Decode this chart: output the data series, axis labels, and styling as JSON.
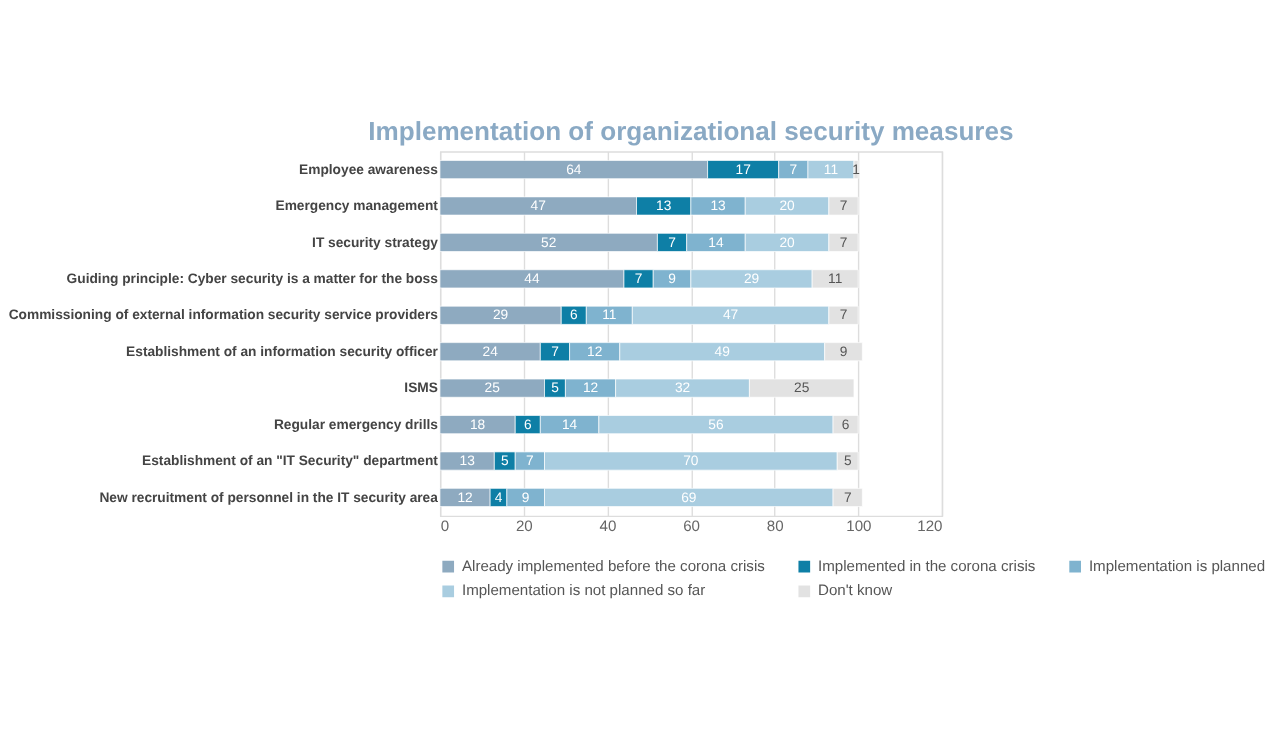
{
  "chart_data": {
    "type": "bar",
    "orientation": "horizontal",
    "stacked": true,
    "title": "Implementation of organizational security measures",
    "categories": [
      "Employee awareness",
      "Emergency management",
      "IT security strategy",
      "Guiding principle: Cyber security is a matter for the boss",
      "Commissioning of external information security service providers",
      "Establishment of an information security officer",
      "ISMS",
      "Regular emergency drills",
      "Establishment of an \"IT Security\" department",
      "New recruitment of personnel in the IT security area"
    ],
    "series": [
      {
        "name": "Already implemented before the corona crisis",
        "color": "#8eaac0",
        "values": [
          64,
          47,
          52,
          44,
          29,
          24,
          25,
          18,
          13,
          12
        ]
      },
      {
        "name": "Implemented in the corona crisis",
        "color": "#0e7fa6",
        "values": [
          17,
          13,
          7,
          7,
          6,
          7,
          5,
          6,
          5,
          4
        ]
      },
      {
        "name": "Implementation is planned",
        "color": "#7fb3cf",
        "values": [
          7,
          13,
          14,
          9,
          11,
          12,
          12,
          14,
          7,
          9
        ]
      },
      {
        "name": "Implementation is not planned so far",
        "color": "#a9cde0",
        "values": [
          11,
          20,
          20,
          29,
          47,
          49,
          32,
          56,
          70,
          69
        ]
      },
      {
        "name": "Don't know",
        "color": "#e2e2e2",
        "values": [
          1,
          7,
          7,
          11,
          7,
          9,
          25,
          6,
          5,
          7
        ]
      }
    ],
    "xlim": [
      0,
      120
    ],
    "xticks": [
      0,
      20,
      40,
      60,
      80,
      100,
      120
    ],
    "grid": "x",
    "legend": "bottom",
    "data_labels": true
  }
}
